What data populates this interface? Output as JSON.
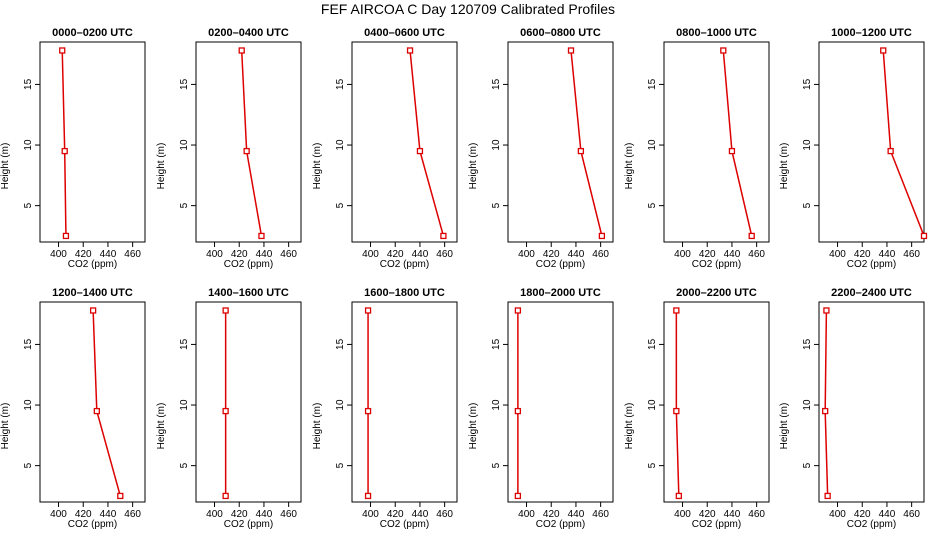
{
  "title": "FEF AIRCOA C  Day 120709  Calibrated Profiles",
  "chart_data": {
    "type": "line",
    "xlabel": "CO2 (ppm)",
    "ylabel": "Height (m)",
    "xlim": [
      385,
      470
    ],
    "ylim": [
      2,
      18.5
    ],
    "xticks": [
      400,
      420,
      440,
      460
    ],
    "yticks": [
      5,
      10,
      15
    ],
    "line_color": "#dd0000",
    "marker_color": "#dd0000",
    "heights": [
      2.5,
      9.5,
      17.8
    ],
    "panels": [
      {
        "title": "0000–0200 UTC",
        "co2": [
          406,
          405,
          403
        ]
      },
      {
        "title": "0200–0400 UTC",
        "co2": [
          438,
          426,
          422
        ]
      },
      {
        "title": "0400–0600 UTC",
        "co2": [
          459,
          440,
          432
        ]
      },
      {
        "title": "0600–0800 UTC",
        "co2": [
          461,
          444,
          436
        ]
      },
      {
        "title": "0800–1000 UTC",
        "co2": [
          456,
          440,
          433
        ]
      },
      {
        "title": "1000–1200 UTC",
        "co2": [
          470,
          443,
          437
        ]
      },
      {
        "title": "1200–1400 UTC",
        "co2": [
          450,
          431,
          428
        ]
      },
      {
        "title": "1400–1600 UTC",
        "co2": [
          409,
          409,
          409
        ]
      },
      {
        "title": "1600–1800 UTC",
        "co2": [
          398,
          398,
          398
        ]
      },
      {
        "title": "1800–2000 UTC",
        "co2": [
          393,
          393,
          393
        ]
      },
      {
        "title": "2000–2200 UTC",
        "co2": [
          397,
          395,
          395
        ]
      },
      {
        "title": "2200–2400 UTC",
        "co2": [
          392,
          390,
          391
        ]
      }
    ]
  }
}
